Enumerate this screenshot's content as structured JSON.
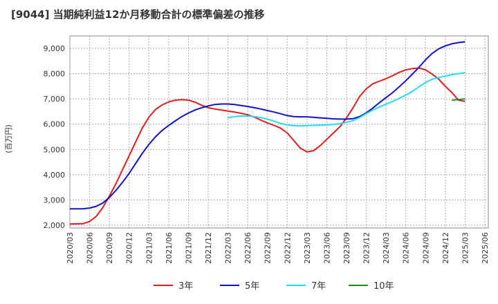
{
  "chart_data": {
    "type": "line",
    "title": "[9044]  当期純利益12か月移動合計の標準偏差の推移",
    "ylabel": "(百万円)",
    "xlabel": "",
    "ylim": [
      2000,
      9500
    ],
    "yticks": [
      2000,
      3000,
      4000,
      5000,
      6000,
      7000,
      8000,
      9000
    ],
    "ytick_labels": [
      "2,000",
      "3,000",
      "4,000",
      "5,000",
      "6,000",
      "7,000",
      "8,000",
      "9,000"
    ],
    "xticks": [
      "2020/03",
      "2020/06",
      "2020/09",
      "2020/12",
      "2021/03",
      "2021/06",
      "2021/09",
      "2021/12",
      "2022/03",
      "2022/06",
      "2022/09",
      "2022/12",
      "2023/03",
      "2023/06",
      "2023/09",
      "2023/12",
      "2024/03",
      "2024/06",
      "2024/09",
      "2024/12",
      "2025/03",
      "2025/06"
    ],
    "grid": true,
    "legend_position": "bottom",
    "series": [
      {
        "name": "3年",
        "color": "#e31a1c",
        "x": [
          "2020/03",
          "2020/05",
          "2020/06",
          "2020/07",
          "2020/08",
          "2020/09",
          "2020/10",
          "2020/11",
          "2020/12",
          "2021/01",
          "2021/02",
          "2021/03",
          "2021/04",
          "2021/05",
          "2021/06",
          "2021/07",
          "2021/08",
          "2021/09",
          "2021/10",
          "2021/11",
          "2021/12",
          "2022/01",
          "2022/02",
          "2022/03",
          "2022/04",
          "2022/05",
          "2022/06",
          "2022/07",
          "2022/08",
          "2022/09",
          "2022/10",
          "2022/11",
          "2022/12",
          "2023/01",
          "2023/02",
          "2023/03",
          "2023/04",
          "2023/05",
          "2023/06",
          "2023/07",
          "2023/08",
          "2023/09",
          "2023/10",
          "2023/11",
          "2023/12",
          "2024/01",
          "2024/02",
          "2024/03",
          "2024/04",
          "2024/05",
          "2024/06",
          "2024/07",
          "2024/08",
          "2024/09",
          "2024/10",
          "2024/11",
          "2024/12",
          "2025/01",
          "2025/02",
          "2025/03"
        ],
        "values": [
          2050,
          2060,
          2150,
          2350,
          2700,
          3150,
          3650,
          4200,
          4750,
          5300,
          5850,
          6280,
          6580,
          6760,
          6880,
          6950,
          6970,
          6950,
          6870,
          6750,
          6650,
          6600,
          6560,
          6520,
          6480,
          6430,
          6370,
          6280,
          6160,
          6050,
          5950,
          5840,
          5650,
          5350,
          5050,
          4900,
          4950,
          5150,
          5400,
          5650,
          5900,
          6250,
          6650,
          7100,
          7400,
          7600,
          7700,
          7800,
          7920,
          8050,
          8150,
          8200,
          8220,
          8150,
          7980,
          7780,
          7500,
          7250,
          6950,
          6900
        ],
        "x_start": "2020/03",
        "x_end": "2025/03"
      },
      {
        "name": "5年",
        "color": "#1010cc",
        "x": [
          "2020/03",
          "2020/04",
          "2020/05",
          "2020/06",
          "2020/07",
          "2020/08",
          "2020/09",
          "2020/10",
          "2020/11",
          "2020/12",
          "2021/01",
          "2021/02",
          "2021/03",
          "2021/04",
          "2021/05",
          "2021/06",
          "2021/07",
          "2021/08",
          "2021/09",
          "2021/10",
          "2021/11",
          "2021/12",
          "2022/01",
          "2022/02",
          "2022/03",
          "2022/04",
          "2022/05",
          "2022/06",
          "2022/07",
          "2022/08",
          "2022/09",
          "2022/10",
          "2022/11",
          "2022/12",
          "2023/01",
          "2023/02",
          "2023/03",
          "2023/04",
          "2023/05",
          "2023/06",
          "2023/07",
          "2023/08",
          "2023/09",
          "2023/10",
          "2023/11",
          "2023/12",
          "2024/01",
          "2024/02",
          "2024/03",
          "2024/04",
          "2024/05",
          "2024/06",
          "2024/07",
          "2024/08",
          "2024/09",
          "2024/10",
          "2024/11",
          "2024/12",
          "2025/01",
          "2025/02",
          "2025/03"
        ],
        "values": [
          2650,
          2650,
          2650,
          2680,
          2750,
          2880,
          3100,
          3380,
          3700,
          4050,
          4450,
          4850,
          5200,
          5500,
          5750,
          5950,
          6130,
          6300,
          6440,
          6560,
          6650,
          6720,
          6780,
          6800,
          6800,
          6780,
          6740,
          6700,
          6650,
          6600,
          6540,
          6480,
          6410,
          6340,
          6300,
          6290,
          6290,
          6270,
          6250,
          6230,
          6210,
          6200,
          6200,
          6220,
          6300,
          6450,
          6640,
          6850,
          7050,
          7250,
          7480,
          7720,
          7980,
          8250,
          8550,
          8800,
          8980,
          9100,
          9180,
          9230,
          9260
        ],
        "x_start": "2020/03",
        "x_end": "2025/03"
      },
      {
        "name": "7年",
        "color": "#22ddee",
        "x": [
          "2022/03",
          "2022/04",
          "2022/05",
          "2022/06",
          "2022/07",
          "2022/08",
          "2022/09",
          "2022/10",
          "2022/11",
          "2022/12",
          "2023/01",
          "2023/02",
          "2023/03",
          "2023/04",
          "2023/05",
          "2023/06",
          "2023/07",
          "2023/08",
          "2023/09",
          "2023/10",
          "2023/11",
          "2023/12",
          "2024/01",
          "2024/02",
          "2024/03",
          "2024/04",
          "2024/05",
          "2024/06",
          "2024/07",
          "2024/08",
          "2024/09",
          "2024/10",
          "2024/11",
          "2024/12",
          "2025/01",
          "2025/02",
          "2025/03"
        ],
        "values": [
          6250,
          6300,
          6320,
          6320,
          6300,
          6260,
          6200,
          6120,
          6030,
          5970,
          5940,
          5930,
          5940,
          5950,
          5960,
          5970,
          5990,
          6020,
          6070,
          6140,
          6260,
          6420,
          6560,
          6680,
          6790,
          6900,
          7020,
          7150,
          7300,
          7480,
          7650,
          7780,
          7850,
          7900,
          7960,
          8000,
          8040
        ],
        "x_start": "2022/03",
        "x_end": "2025/03"
      },
      {
        "name": "10年",
        "color": "#228b22",
        "x": [
          "2025/01",
          "2025/03"
        ],
        "values": [
          6950,
          7000
        ],
        "x_start": "2025/01",
        "x_end": "2025/03"
      }
    ]
  }
}
